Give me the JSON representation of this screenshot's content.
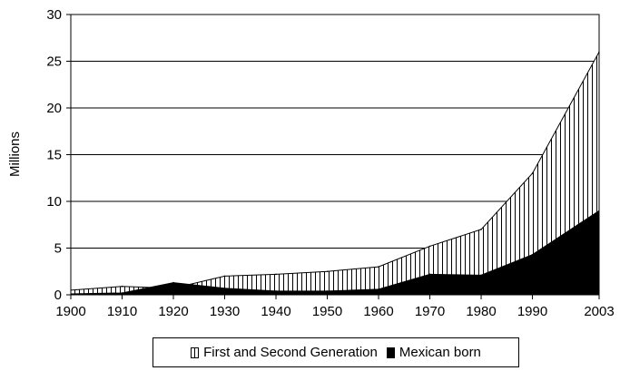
{
  "chart_data": {
    "type": "area",
    "title": "",
    "xlabel": "",
    "ylabel": "Millions",
    "ylim": [
      0,
      30
    ],
    "yticks": [
      0,
      5,
      10,
      15,
      20,
      25,
      30
    ],
    "xticks": [
      "1900",
      "1910",
      "1920",
      "1930",
      "1940",
      "1950",
      "1960",
      "1970",
      "1980",
      "1990",
      "2003"
    ],
    "grid": "horizontal",
    "legend_position": "bottom",
    "series": [
      {
        "name": "First and Second Generation",
        "style": "vertical-hatch",
        "x": [
          1900,
          1910,
          1920,
          1930,
          1940,
          1950,
          1960,
          1970,
          1980,
          1990,
          2003
        ],
        "y": [
          0.5,
          0.9,
          0.7,
          2.0,
          2.2,
          2.5,
          3.0,
          5.2,
          7.0,
          13.0,
          26.0
        ]
      },
      {
        "name": "Mexican born",
        "style": "solid-black",
        "x": [
          1900,
          1910,
          1920,
          1930,
          1940,
          1950,
          1960,
          1970,
          1980,
          1990,
          2003
        ],
        "y": [
          0.1,
          0.2,
          1.3,
          0.7,
          0.4,
          0.4,
          0.6,
          2.2,
          2.1,
          4.3,
          9.0
        ]
      }
    ]
  },
  "legend": {
    "items": [
      {
        "label": "First and Second Generation",
        "swatch": "hatch"
      },
      {
        "label": "Mexican born",
        "swatch": "solid"
      }
    ]
  },
  "colors": {
    "ink": "#000000",
    "background": "#ffffff"
  }
}
